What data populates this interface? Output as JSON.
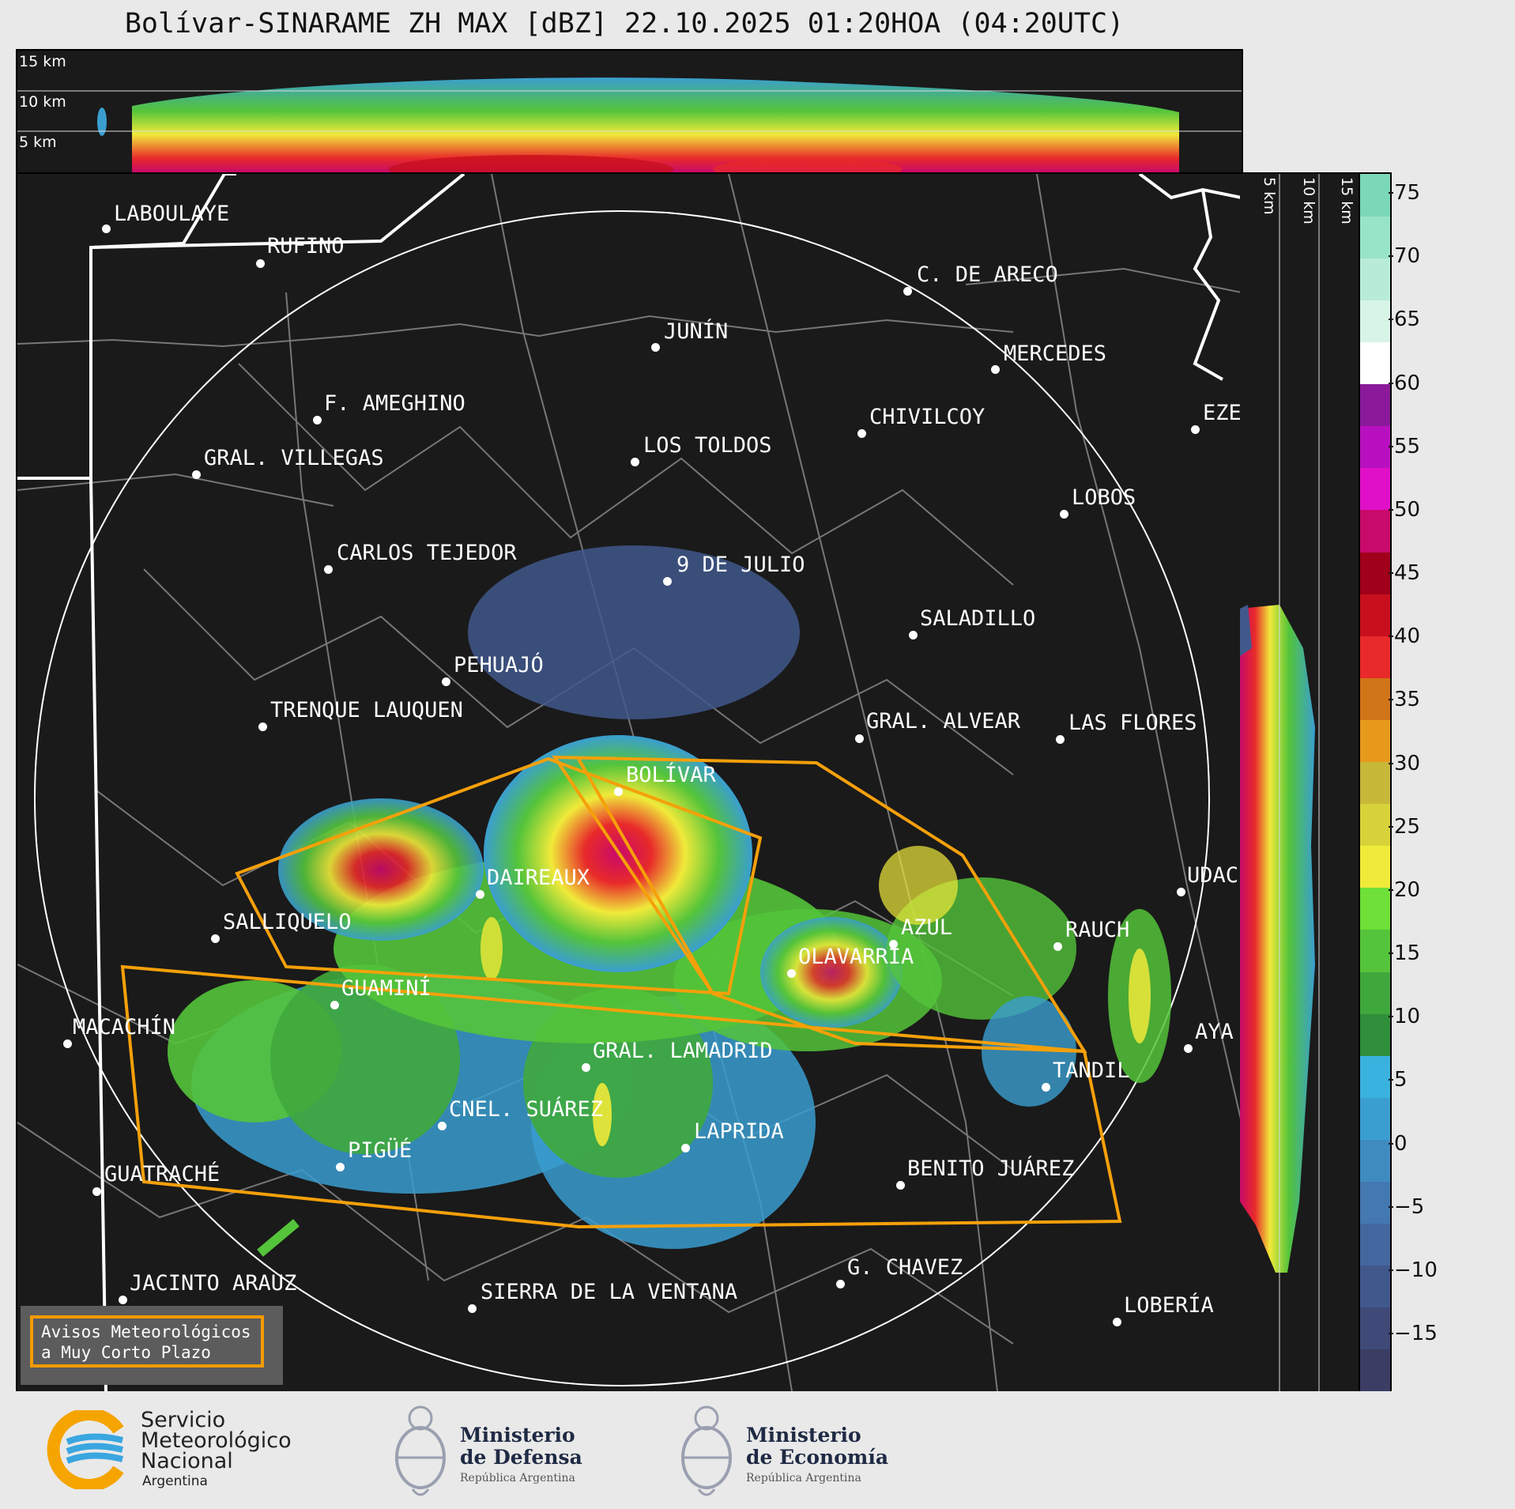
{
  "title": "Bolívar-SINARAME ZH MAX [dBZ] 22.10.2025 01:20HOA (04:20UTC)",
  "cross_section_top": {
    "height_labels": [
      "15 km",
      "10 km",
      "5 km"
    ]
  },
  "cross_section_right": {
    "height_labels": [
      "5 km",
      "10 km",
      "15 km"
    ]
  },
  "colorbar": {
    "unit": "dBZ",
    "ticks": [
      "75",
      "70",
      "65",
      "60",
      "55",
      "50",
      "45",
      "40",
      "35",
      "30",
      "25",
      "20",
      "15",
      "10",
      "5",
      "0",
      "−5",
      "−10",
      "−15"
    ],
    "colors": [
      "#3b3d63",
      "#3f4a78",
      "#41588c",
      "#43679f",
      "#4478b0",
      "#3f8bc0",
      "#3a9ed0",
      "#39b2e0",
      "#2f8f3a",
      "#3fa83c",
      "#54c43a",
      "#6ee038",
      "#f0ea3a",
      "#d8d23a",
      "#c8b83a",
      "#e89a1c",
      "#d07418",
      "#e82a2a",
      "#c80f1e",
      "#a0001a",
      "#c80a6a",
      "#e010c8",
      "#b810c0",
      "#8a1a9a",
      "#ffffff",
      "#d8f4e6",
      "#b8ecd8",
      "#98e4c8",
      "#7ad8b8"
    ]
  },
  "cities": [
    {
      "name": "LABOULAYE"
    },
    {
      "name": "RUFINO"
    },
    {
      "name": "C. DE ARECO"
    },
    {
      "name": "JUNÍN"
    },
    {
      "name": "MERCEDES"
    },
    {
      "name": "F. AMEGHINO"
    },
    {
      "name": "CHIVILCOY"
    },
    {
      "name": "EZE"
    },
    {
      "name": "GRAL. VILLEGAS"
    },
    {
      "name": "LOS TOLDOS"
    },
    {
      "name": "LOBOS"
    },
    {
      "name": "CARLOS TEJEDOR"
    },
    {
      "name": "9 DE JULIO"
    },
    {
      "name": "SALADILLO"
    },
    {
      "name": "PEHUAJÓ"
    },
    {
      "name": "TRENQUE LAUQUEN"
    },
    {
      "name": "GRAL. ALVEAR"
    },
    {
      "name": "LAS FLORES"
    },
    {
      "name": "BOLÍVAR"
    },
    {
      "name": "DAIREAUX"
    },
    {
      "name": "UDAC"
    },
    {
      "name": "SALLIQUELO"
    },
    {
      "name": "AZUL"
    },
    {
      "name": "RAUCH"
    },
    {
      "name": "OLAVARRÍA"
    },
    {
      "name": "GUAMINÍ"
    },
    {
      "name": "MACACHÍN"
    },
    {
      "name": "AYA"
    },
    {
      "name": "GRAL. LAMADRID"
    },
    {
      "name": "TANDIL"
    },
    {
      "name": "CNEL. SUÁREZ"
    },
    {
      "name": "LAPRIDA"
    },
    {
      "name": "PIGÜÉ"
    },
    {
      "name": "BENITO JUÁREZ"
    },
    {
      "name": "GUATRACHÉ"
    },
    {
      "name": "G. CHAVEZ"
    },
    {
      "name": "JACINTO ARAUZ"
    },
    {
      "name": "SIERRA DE LA VENTANA"
    },
    {
      "name": "LOBERÍA"
    }
  ],
  "badge": {
    "line1": "Avisos Meteorológicos",
    "line2": "a Muy Corto Plazo"
  },
  "footer": {
    "smn": {
      "line1": "Servicio",
      "line2": "Meteorológico",
      "line3": "Nacional",
      "line4": "Argentina"
    },
    "defensa": {
      "line1": "Ministerio",
      "line2": "de Defensa",
      "line3": "República Argentina"
    },
    "economia": {
      "line1": "Ministerio",
      "line2": "de Economía",
      "line3": "República Argentina"
    }
  }
}
